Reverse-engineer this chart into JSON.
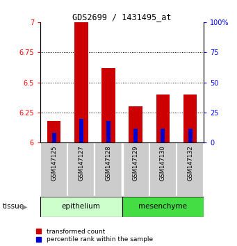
{
  "title": "GDS2699 / 1431495_at",
  "samples": [
    "GSM147125",
    "GSM147127",
    "GSM147128",
    "GSM147129",
    "GSM147130",
    "GSM147132"
  ],
  "red_values": [
    6.18,
    7.0,
    6.62,
    6.3,
    6.4,
    6.4
  ],
  "blue_values": [
    6.08,
    6.2,
    6.18,
    6.12,
    6.12,
    6.12
  ],
  "ylim_left": [
    6.0,
    7.0
  ],
  "ylim_right": [
    0,
    100
  ],
  "yticks_left": [
    6.0,
    6.25,
    6.5,
    6.75,
    7.0
  ],
  "yticks_right": [
    0,
    25,
    50,
    75,
    100
  ],
  "ytick_labels_left": [
    "6",
    "6.25",
    "6.5",
    "6.75",
    "7"
  ],
  "ytick_labels_right": [
    "0",
    "25",
    "50",
    "75",
    "100%"
  ],
  "epithelium_color": "#ccffcc",
  "mesenchyme_color": "#44dd44",
  "sample_label_bg": "#cccccc",
  "bar_width": 0.5,
  "blue_bar_width": 0.15,
  "red_color": "#cc0000",
  "blue_color": "#0000cc",
  "legend_red": "transformed count",
  "legend_blue": "percentile rank within the sample",
  "epithelium_samples": [
    0,
    1,
    2
  ],
  "mesenchyme_samples": [
    3,
    4,
    5
  ]
}
